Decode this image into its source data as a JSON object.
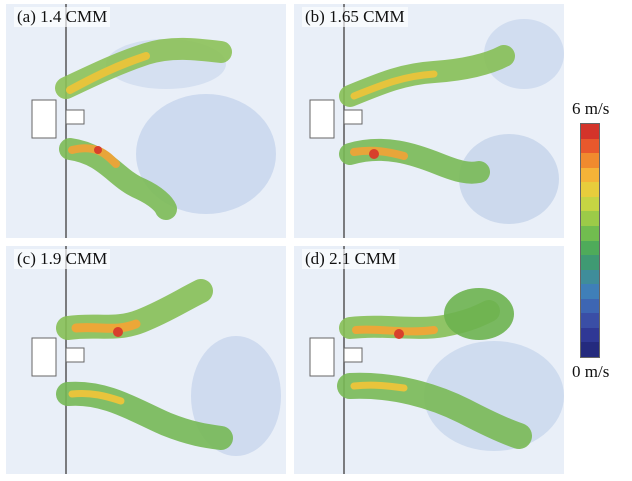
{
  "panels": [
    {
      "id": "a",
      "label": "(a) 1.4 CMM"
    },
    {
      "id": "b",
      "label": "(b) 1.65 CMM"
    },
    {
      "id": "c",
      "label": "(c) 1.9 CMM"
    },
    {
      "id": "d",
      "label": "(d) 2.1 CMM"
    }
  ],
  "colorbar": {
    "max_label": "6 m/s",
    "min_label": "0 m/s",
    "colors": [
      "#d4342a",
      "#e8582c",
      "#f08a2e",
      "#f5b338",
      "#e8cd3c",
      "#c6d443",
      "#9ccb48",
      "#71bd4f",
      "#4fab5a",
      "#3f9a73",
      "#3f8d9a",
      "#3f7fb8",
      "#3d66b3",
      "#3a4ea6",
      "#2f3895",
      "#242a7e"
    ]
  }
}
